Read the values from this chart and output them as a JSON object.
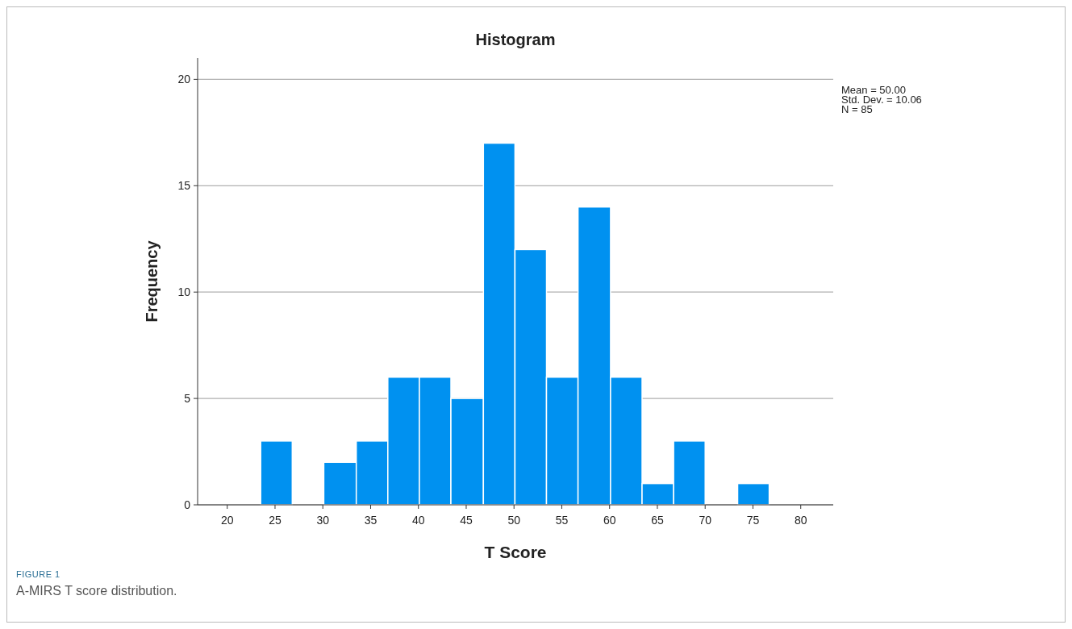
{
  "chart_data": {
    "type": "histogram",
    "title": "Histogram",
    "xlabel": "T Score",
    "ylabel": "Frequency",
    "bins": [
      23.5,
      26.8,
      30.1,
      33.5,
      36.8,
      40.1,
      43.4,
      46.8,
      50.1,
      53.4,
      56.7,
      60.1,
      63.4,
      66.7,
      70.0,
      73.4,
      76.7
    ],
    "values": [
      3,
      0,
      2,
      3,
      6,
      6,
      5,
      17,
      12,
      6,
      14,
      6,
      1,
      3,
      0,
      1
    ],
    "color": "#0091f0",
    "xlim": [
      16.9,
      83.4
    ],
    "xticks": [
      20,
      25,
      30,
      35,
      40,
      45,
      50,
      55,
      60,
      65,
      70,
      75,
      80
    ],
    "ylim": [
      0,
      21
    ],
    "yticks": [
      0,
      5,
      10,
      15,
      20
    ],
    "grid": "y",
    "annotations": [
      "Mean = 50.00",
      "Std. Dev. = 10.06",
      "N = 85",
      "FIGURE 1",
      "A-MIRS T score distribution."
    ]
  }
}
